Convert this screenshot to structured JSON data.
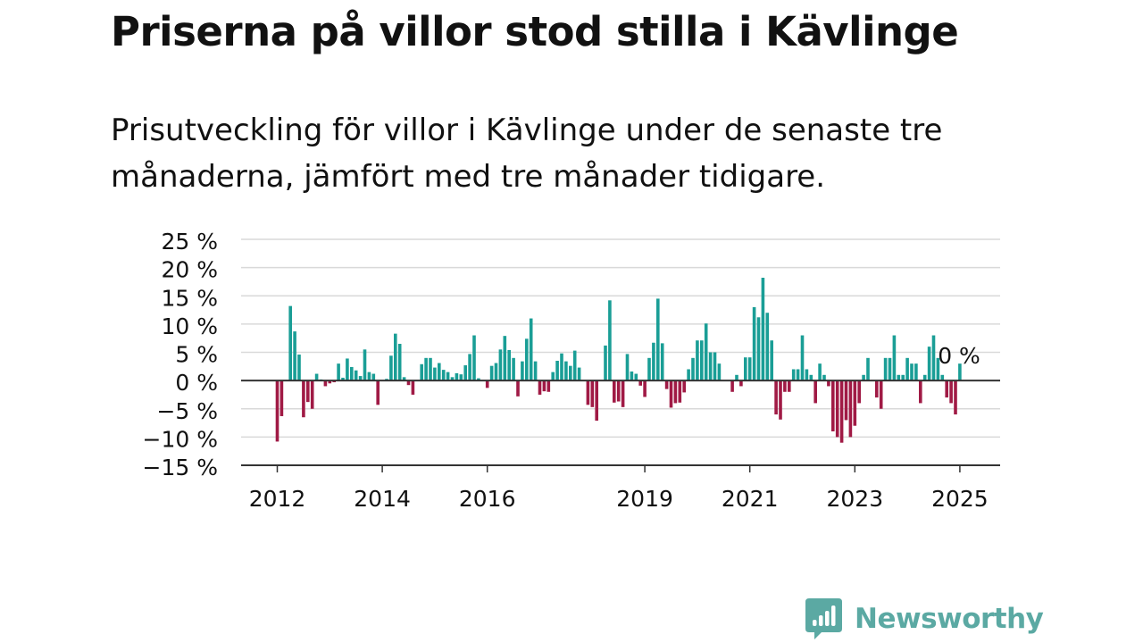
{
  "title": "Priserna på villor stod stilla i Kävlinge",
  "subtitle": "Prisutveckling för villor i Kävlinge under de senaste tre månaderna, jämfört med tre månader tidigare.",
  "brand": {
    "name": "Newsworthy",
    "icon": "newsworthy-logo-icon",
    "color": "#5ba9a3"
  },
  "colors": {
    "positive": "#1a9e96",
    "negative": "#a01a45",
    "grid": "#d9d9d9",
    "axis": "#333333",
    "text": "#111111"
  },
  "chart_data": {
    "type": "bar",
    "title": "",
    "xlabel": "",
    "ylabel": "",
    "ylim": [
      -15,
      25
    ],
    "yticks": [
      25,
      20,
      15,
      10,
      5,
      0,
      -5,
      -10,
      -15
    ],
    "ytick_labels": [
      "25 %",
      "20 %",
      "15 %",
      "10 %",
      "5 %",
      "0 %",
      "−5 %",
      "−10 %",
      "−15 %"
    ],
    "xticks": [
      {
        "label": "2012",
        "date": "2012-01"
      },
      {
        "label": "2014",
        "date": "2014-01"
      },
      {
        "label": "2016",
        "date": "2016-01"
      },
      {
        "label": "2019",
        "date": "2019-01"
      },
      {
        "label": "2021",
        "date": "2021-01"
      },
      {
        "label": "2023",
        "date": "2023-01"
      },
      {
        "label": "2025",
        "date": "2025-01"
      }
    ],
    "grid": true,
    "annotation": {
      "label": "0 %",
      "date": "2024-12"
    },
    "series": [
      {
        "values": [
          {
            "date": "2012-01",
            "value": -10.8
          },
          {
            "date": "2012-02",
            "value": -6.3
          },
          {
            "date": "2012-03",
            "value": 0.0
          },
          {
            "date": "2012-04",
            "value": 13.2
          },
          {
            "date": "2012-05",
            "value": 8.7
          },
          {
            "date": "2012-06",
            "value": 4.6
          },
          {
            "date": "2012-07",
            "value": -6.5
          },
          {
            "date": "2012-08",
            "value": -3.8
          },
          {
            "date": "2012-09",
            "value": -5.0
          },
          {
            "date": "2012-10",
            "value": 1.2
          },
          {
            "date": "2012-11",
            "value": 0.2
          },
          {
            "date": "2012-12",
            "value": -1.0
          },
          {
            "date": "2013-01",
            "value": -0.5
          },
          {
            "date": "2013-02",
            "value": -0.3
          },
          {
            "date": "2013-03",
            "value": 3.0
          },
          {
            "date": "2013-04",
            "value": 0.5
          },
          {
            "date": "2013-05",
            "value": 3.9
          },
          {
            "date": "2013-06",
            "value": 2.4
          },
          {
            "date": "2013-07",
            "value": 1.8
          },
          {
            "date": "2013-08",
            "value": 0.8
          },
          {
            "date": "2013-09",
            "value": 5.5
          },
          {
            "date": "2013-10",
            "value": 1.5
          },
          {
            "date": "2013-11",
            "value": 1.2
          },
          {
            "date": "2013-12",
            "value": -4.3
          },
          {
            "date": "2014-01",
            "value": 0.0
          },
          {
            "date": "2014-02",
            "value": 0.3
          },
          {
            "date": "2014-03",
            "value": 4.4
          },
          {
            "date": "2014-04",
            "value": 8.3
          },
          {
            "date": "2014-05",
            "value": 6.5
          },
          {
            "date": "2014-06",
            "value": 0.6
          },
          {
            "date": "2014-07",
            "value": -0.8
          },
          {
            "date": "2014-08",
            "value": -2.5
          },
          {
            "date": "2014-09",
            "value": 0.0
          },
          {
            "date": "2014-10",
            "value": 2.9
          },
          {
            "date": "2014-11",
            "value": 4.0
          },
          {
            "date": "2014-12",
            "value": 4.0
          },
          {
            "date": "2015-01",
            "value": 2.3
          },
          {
            "date": "2015-02",
            "value": 3.1
          },
          {
            "date": "2015-03",
            "value": 1.9
          },
          {
            "date": "2015-04",
            "value": 1.5
          },
          {
            "date": "2015-05",
            "value": 0.6
          },
          {
            "date": "2015-06",
            "value": 1.3
          },
          {
            "date": "2015-07",
            "value": 1.1
          },
          {
            "date": "2015-08",
            "value": 2.7
          },
          {
            "date": "2015-09",
            "value": 4.7
          },
          {
            "date": "2015-10",
            "value": 8.0
          },
          {
            "date": "2015-11",
            "value": 0.4
          },
          {
            "date": "2015-12",
            "value": 0.0
          },
          {
            "date": "2016-01",
            "value": -1.3
          },
          {
            "date": "2016-02",
            "value": 2.6
          },
          {
            "date": "2016-03",
            "value": 3.1
          },
          {
            "date": "2016-04",
            "value": 5.5
          },
          {
            "date": "2016-05",
            "value": 7.9
          },
          {
            "date": "2016-06",
            "value": 5.4
          },
          {
            "date": "2016-07",
            "value": 4.0
          },
          {
            "date": "2016-08",
            "value": -2.8
          },
          {
            "date": "2016-09",
            "value": 3.4
          },
          {
            "date": "2016-10",
            "value": 7.4
          },
          {
            "date": "2016-11",
            "value": 11.0
          },
          {
            "date": "2016-12",
            "value": 3.4
          },
          {
            "date": "2017-01",
            "value": -2.5
          },
          {
            "date": "2017-02",
            "value": -1.9
          },
          {
            "date": "2017-03",
            "value": -2.0
          },
          {
            "date": "2017-04",
            "value": 1.5
          },
          {
            "date": "2017-05",
            "value": 3.5
          },
          {
            "date": "2017-06",
            "value": 4.8
          },
          {
            "date": "2017-07",
            "value": 3.4
          },
          {
            "date": "2017-08",
            "value": 2.6
          },
          {
            "date": "2017-09",
            "value": 5.3
          },
          {
            "date": "2017-10",
            "value": 2.3
          },
          {
            "date": "2017-11",
            "value": 0.0
          },
          {
            "date": "2017-12",
            "value": -4.3
          },
          {
            "date": "2018-01",
            "value": -4.7
          },
          {
            "date": "2018-02",
            "value": -7.1
          },
          {
            "date": "2018-03",
            "value": 0.0
          },
          {
            "date": "2018-04",
            "value": 6.2
          },
          {
            "date": "2018-05",
            "value": 14.2
          },
          {
            "date": "2018-06",
            "value": -3.9
          },
          {
            "date": "2018-07",
            "value": -3.7
          },
          {
            "date": "2018-08",
            "value": -4.7
          },
          {
            "date": "2018-09",
            "value": 4.7
          },
          {
            "date": "2018-10",
            "value": 1.6
          },
          {
            "date": "2018-11",
            "value": 1.2
          },
          {
            "date": "2018-12",
            "value": -0.9
          },
          {
            "date": "2019-01",
            "value": -2.9
          },
          {
            "date": "2019-02",
            "value": 4.0
          },
          {
            "date": "2019-03",
            "value": 6.7
          },
          {
            "date": "2019-04",
            "value": 14.5
          },
          {
            "date": "2019-05",
            "value": 6.6
          },
          {
            "date": "2019-06",
            "value": -1.5
          },
          {
            "date": "2019-07",
            "value": -4.8
          },
          {
            "date": "2019-08",
            "value": -4.0
          },
          {
            "date": "2019-09",
            "value": -3.9
          },
          {
            "date": "2019-10",
            "value": -2.1
          },
          {
            "date": "2019-11",
            "value": 2.0
          },
          {
            "date": "2019-12",
            "value": 4.0
          },
          {
            "date": "2020-01",
            "value": 7.1
          },
          {
            "date": "2020-02",
            "value": 7.1
          },
          {
            "date": "2020-03",
            "value": 10.1
          },
          {
            "date": "2020-04",
            "value": 5.0
          },
          {
            "date": "2020-05",
            "value": 5.0
          },
          {
            "date": "2020-06",
            "value": 3.0
          },
          {
            "date": "2020-07",
            "value": 0.0
          },
          {
            "date": "2020-08",
            "value": 0.0
          },
          {
            "date": "2020-09",
            "value": -2.0
          },
          {
            "date": "2020-10",
            "value": 1.0
          },
          {
            "date": "2020-11",
            "value": -1.0
          },
          {
            "date": "2020-12",
            "value": 4.1
          },
          {
            "date": "2021-01",
            "value": 4.1
          },
          {
            "date": "2021-02",
            "value": 13.0
          },
          {
            "date": "2021-03",
            "value": 11.2
          },
          {
            "date": "2021-04",
            "value": 18.2
          },
          {
            "date": "2021-05",
            "value": 12.0
          },
          {
            "date": "2021-06",
            "value": 7.1
          },
          {
            "date": "2021-07",
            "value": -6.0
          },
          {
            "date": "2021-08",
            "value": -6.9
          },
          {
            "date": "2021-09",
            "value": -2.0
          },
          {
            "date": "2021-10",
            "value": -2.0
          },
          {
            "date": "2021-11",
            "value": 2.0
          },
          {
            "date": "2021-12",
            "value": 2.0
          },
          {
            "date": "2022-01",
            "value": 8.0
          },
          {
            "date": "2022-02",
            "value": 2.0
          },
          {
            "date": "2022-03",
            "value": 1.0
          },
          {
            "date": "2022-04",
            "value": -4.0
          },
          {
            "date": "2022-05",
            "value": 3.0
          },
          {
            "date": "2022-06",
            "value": 1.0
          },
          {
            "date": "2022-07",
            "value": -1.0
          },
          {
            "date": "2022-08",
            "value": -9.0
          },
          {
            "date": "2022-09",
            "value": -10.0
          },
          {
            "date": "2022-10",
            "value": -11.0
          },
          {
            "date": "2022-11",
            "value": -7.0
          },
          {
            "date": "2022-12",
            "value": -10.0
          },
          {
            "date": "2023-01",
            "value": -8.0
          },
          {
            "date": "2023-02",
            "value": -4.0
          },
          {
            "date": "2023-03",
            "value": 1.0
          },
          {
            "date": "2023-04",
            "value": 4.0
          },
          {
            "date": "2023-05",
            "value": 0.0
          },
          {
            "date": "2023-06",
            "value": -3.0
          },
          {
            "date": "2023-07",
            "value": -5.0
          },
          {
            "date": "2023-08",
            "value": 4.0
          },
          {
            "date": "2023-09",
            "value": 4.0
          },
          {
            "date": "2023-10",
            "value": 8.0
          },
          {
            "date": "2023-11",
            "value": 1.0
          },
          {
            "date": "2023-12",
            "value": 1.0
          },
          {
            "date": "2024-01",
            "value": 4.0
          },
          {
            "date": "2024-02",
            "value": 3.0
          },
          {
            "date": "2024-03",
            "value": 3.0
          },
          {
            "date": "2024-04",
            "value": -4.0
          },
          {
            "date": "2024-05",
            "value": 1.0
          },
          {
            "date": "2024-06",
            "value": 6.0
          },
          {
            "date": "2024-07",
            "value": 8.0
          },
          {
            "date": "2024-08",
            "value": 4.0
          },
          {
            "date": "2024-09",
            "value": 1.0
          },
          {
            "date": "2024-10",
            "value": -3.0
          },
          {
            "date": "2024-11",
            "value": -4.0
          },
          {
            "date": "2024-12",
            "value": -6.0
          },
          {
            "date": "2025-01",
            "value": 3.0
          },
          {
            "date": "2025-02",
            "value": 0.0
          }
        ]
      }
    ]
  }
}
